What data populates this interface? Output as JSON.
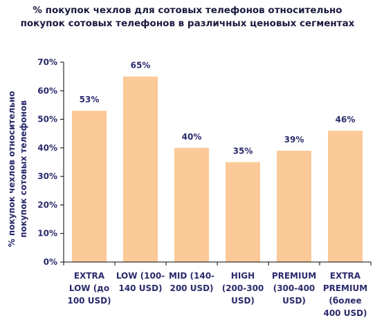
{
  "chart_data": {
    "type": "bar",
    "title_lines": [
      "% покупок чехлов для сотовых телефонов относительно",
      "покупок сотовых телефонов в различных ценовых сегментах"
    ],
    "ylabel_lines": [
      "% покупок чехлов относительно",
      "покупок сотовых телефонов"
    ],
    "xlabel": "",
    "categories": [
      [
        "EXTRA",
        "LOW (до",
        "100 USD)"
      ],
      [
        "LOW (100-",
        "140 USD)"
      ],
      [
        "MID (140-",
        "200 USD)"
      ],
      [
        "HIGH",
        "(200-300",
        "USD)"
      ],
      [
        "PREMIUM",
        "(300-400",
        "USD)"
      ],
      [
        "EXTRA",
        "PREMIUM",
        "(более",
        "400 USD)"
      ]
    ],
    "values": [
      53,
      65,
      40,
      35,
      39,
      46
    ],
    "data_labels": [
      "53%",
      "65%",
      "40%",
      "35%",
      "39%",
      "46%"
    ],
    "ylim": [
      0,
      70
    ],
    "yticks": [
      0,
      10,
      20,
      30,
      40,
      50,
      60,
      70
    ],
    "ytick_labels": [
      "0%",
      "10%",
      "20%",
      "30%",
      "40%",
      "50%",
      "60%",
      "70%"
    ],
    "grid": false,
    "legend": "none",
    "colors": {
      "bar": "#fcc998",
      "axis": "#000000",
      "text": "#2a2a6c",
      "title": "#1a1a3e"
    }
  }
}
